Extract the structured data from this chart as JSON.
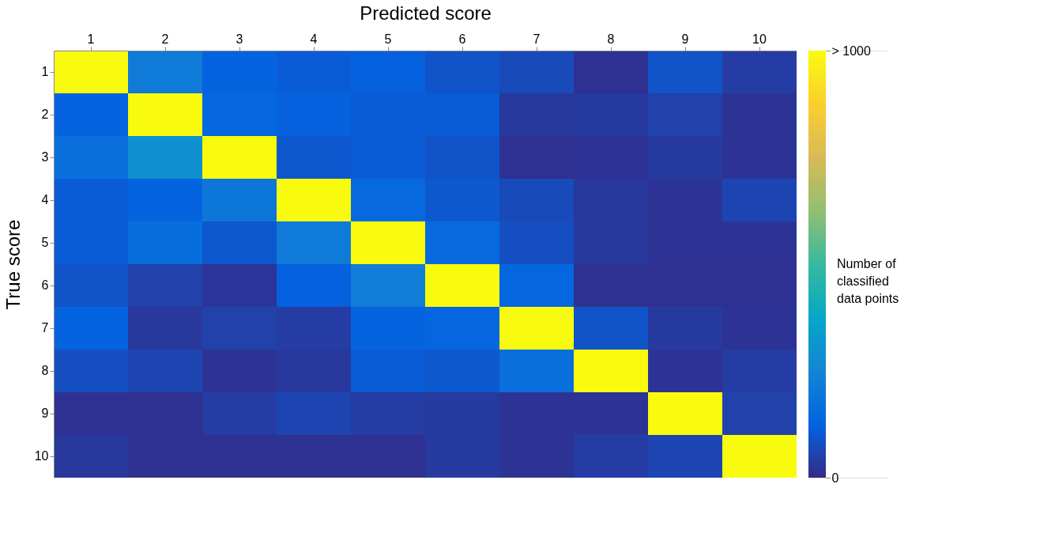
{
  "chart_data": {
    "type": "heatmap",
    "xlabel": "Predicted score",
    "ylabel": "True score",
    "clabel": "Number of classified data points",
    "categories": [
      "1",
      "2",
      "3",
      "4",
      "5",
      "6",
      "7",
      "8",
      "9",
      "10"
    ],
    "y_categories": [
      "1",
      "2",
      "3",
      "4",
      "5",
      "6",
      "7",
      "8",
      "9",
      "10"
    ],
    "cells": [
      [
        1000,
        210,
        130,
        110,
        120,
        90,
        70,
        15,
        90,
        40
      ],
      [
        130,
        1000,
        140,
        120,
        110,
        110,
        30,
        35,
        50,
        20
      ],
      [
        170,
        290,
        1000,
        100,
        110,
        90,
        15,
        20,
        35,
        20
      ],
      [
        110,
        130,
        200,
        1000,
        150,
        100,
        70,
        30,
        20,
        60
      ],
      [
        110,
        160,
        100,
        210,
        1000,
        150,
        80,
        30,
        20,
        20
      ],
      [
        90,
        50,
        25,
        120,
        220,
        1000,
        140,
        15,
        15,
        15
      ],
      [
        130,
        30,
        50,
        40,
        130,
        140,
        1000,
        90,
        35,
        20
      ],
      [
        80,
        60,
        20,
        30,
        110,
        100,
        170,
        1000,
        20,
        40
      ],
      [
        15,
        15,
        40,
        60,
        40,
        35,
        20,
        20,
        1000,
        50
      ],
      [
        30,
        15,
        15,
        15,
        15,
        35,
        20,
        40,
        60,
        1000
      ]
    ],
    "clim": [
      0,
      1000
    ],
    "cticks": [
      0,
      {
        "value": 1000,
        "label": "> 1000"
      }
    ]
  }
}
